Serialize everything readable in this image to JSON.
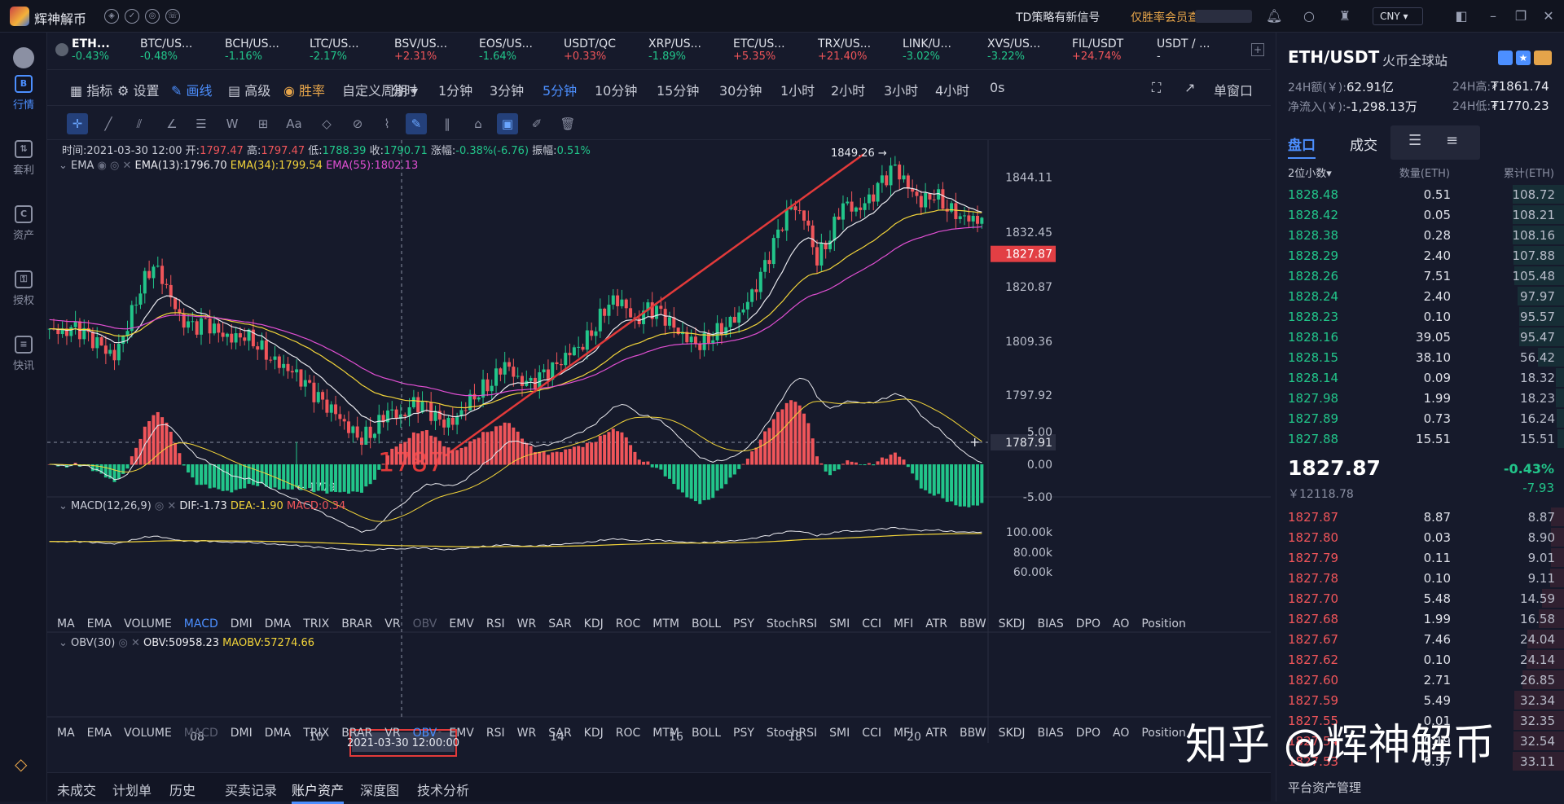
{
  "app": {
    "name": "辉神解币",
    "news": "TD策略有新信号",
    "news_link": "仅胜率会员查看",
    "currency": "CNY ▾"
  },
  "sidebar": [
    {
      "label": "行情",
      "glyph": "B"
    },
    {
      "label": "套利",
      "glyph": "⇅"
    },
    {
      "label": "资产",
      "glyph": "C"
    },
    {
      "label": "授权",
      "glyph": "⚿"
    },
    {
      "label": "快讯",
      "glyph": "≡"
    }
  ],
  "tickers": [
    {
      "name": "ETH...",
      "pct": "-0.43%"
    },
    {
      "name": "BTC/US...",
      "pct": "-0.48%"
    },
    {
      "name": "BCH/US...",
      "pct": "-1.16%"
    },
    {
      "name": "LTC/US...",
      "pct": "-2.17%"
    },
    {
      "name": "BSV/US...",
      "pct": "+2.31%"
    },
    {
      "name": "EOS/US...",
      "pct": "-1.64%"
    },
    {
      "name": "USDT/QC",
      "pct": "+0.33%"
    },
    {
      "name": "XRP/US...",
      "pct": "-1.89%"
    },
    {
      "name": "ETC/US...",
      "pct": "+5.35%"
    },
    {
      "name": "TRX/US...",
      "pct": "+21.40%"
    },
    {
      "name": "LINK/U...",
      "pct": "-3.02%"
    },
    {
      "name": "XVS/US...",
      "pct": "-3.22%"
    },
    {
      "name": "FIL/USDT",
      "pct": "+24.74%"
    },
    {
      "name": "USDT / ...",
      "pct": "-"
    }
  ],
  "toolbar": {
    "indicator": "指标",
    "settings": "设置",
    "draw": "画线",
    "advanced": "高级",
    "winrate": "胜率",
    "custom": "自定义周期 ▾",
    "periods": [
      "分时",
      "1分钟",
      "3分钟",
      "5分钟",
      "10分钟",
      "15分钟",
      "30分钟",
      "1小时",
      "2小时",
      "3小时",
      "4小时",
      "0s"
    ],
    "active_period": "5分钟",
    "single": "单窗口"
  },
  "ohlc": {
    "time": "时间:2021-03-30 12:00",
    "open_label": "开:",
    "open": "1797.47",
    "high_label": "高:",
    "high": "1797.47",
    "low_label": "低:",
    "low": "1788.39",
    "close_label": "收:",
    "close": "1790.71",
    "chg_label": "涨幅:",
    "chg": "-0.38%(-6.76)",
    "amp_label": "振幅:",
    "amp": "0.51%"
  },
  "ema": {
    "label": "EMA",
    "e13": "EMA(13):1796.70",
    "e34": "EMA(34):1799.54",
    "e55": "EMA(55):1802.13",
    "colors": {
      "e13": "#e9e9ee",
      "e34": "#f2d43a",
      "e55": "#e14fd3"
    }
  },
  "macd": {
    "label": "MACD(12,26,9)",
    "dif": "DIF:-1.73",
    "dea": "DEA:-1.90",
    "macd": "MACD:0.34"
  },
  "obv": {
    "label": "OBV(30)",
    "obv": "OBV:50958.23",
    "maobv": "MAOBV:57274.66"
  },
  "indicators": [
    "MA",
    "EMA",
    "VOLUME",
    "MACD",
    "DMI",
    "DMA",
    "TRIX",
    "BRAR",
    "VR",
    "OBV",
    "EMV",
    "RSI",
    "WR",
    "SAR",
    "KDJ",
    "ROC",
    "MTM",
    "BOLL",
    "PSY",
    "StochRSI",
    "SMI",
    "CCI",
    "MFI",
    "ATR",
    "BBW",
    "SKDJ",
    "BIAS",
    "DPO",
    "AO",
    "Position"
  ],
  "chart_data": {
    "type": "candlestick",
    "price_axis": [
      "1844.11",
      "1832.45",
      "1820.87",
      "1809.36",
      "1797.92"
    ],
    "price_range": [
      1776,
      1852
    ],
    "current_price_tag": "1827.87",
    "crosshair_price": "1787.91",
    "macd_axis": [
      "5.00",
      "0.00",
      "-5.00"
    ],
    "obv_axis": [
      "100.00k",
      "80.00k",
      "60.00k"
    ],
    "x_ticks": [
      "08",
      "10",
      "12",
      "14",
      "16",
      "18",
      "20"
    ],
    "crosshair_time": "2021-03-30 12:00:00",
    "annotations": {
      "high": "1849.26 →",
      "low": "← 1779",
      "mark": "1787"
    },
    "close_path": [
      1812,
      1811,
      1812,
      1810,
      1808,
      1806,
      1813,
      1821,
      1826,
      1821,
      1814,
      1812,
      1813,
      1811,
      1810,
      1811,
      1809,
      1806,
      1804,
      1802,
      1799,
      1796,
      1794,
      1791,
      1789,
      1791,
      1795,
      1793,
      1796,
      1795,
      1792,
      1792,
      1796,
      1799,
      1801,
      1805,
      1801,
      1800,
      1802,
      1804,
      1807,
      1809,
      1813,
      1818,
      1818,
      1813,
      1816,
      1815,
      1812,
      1810,
      1809,
      1811,
      1813,
      1815,
      1819,
      1825,
      1832,
      1838,
      1836,
      1827,
      1832,
      1839,
      1837,
      1839,
      1843,
      1846,
      1842,
      1839,
      1841,
      1838,
      1836,
      1835
    ]
  },
  "right": {
    "pair": "ETH/USDT",
    "exchange": "火币全球站",
    "vol_label": "24H额(￥):",
    "vol": "62.91亿",
    "high_label": "24H高:",
    "high": "₮1861.74",
    "inflow_label": "净流入(￥):",
    "inflow": "-1,298.13万",
    "low_label": "24H低:",
    "low": "₮1770.23",
    "tab_book": "盘口",
    "tab_trade": "成交",
    "decimals": "2位小数▾",
    "col_qty": "数量(ETH)",
    "col_cum": "累计(ETH)",
    "bids": [
      [
        "1828.48",
        "0.51",
        "108.72"
      ],
      [
        "1828.42",
        "0.05",
        "108.21"
      ],
      [
        "1828.38",
        "0.28",
        "108.16"
      ],
      [
        "1828.29",
        "2.40",
        "107.88"
      ],
      [
        "1828.26",
        "7.51",
        "105.48"
      ],
      [
        "1828.24",
        "2.40",
        "97.97"
      ],
      [
        "1828.23",
        "0.10",
        "95.57"
      ],
      [
        "1828.16",
        "39.05",
        "95.47"
      ],
      [
        "1828.15",
        "38.10",
        "56.42"
      ],
      [
        "1828.14",
        "0.09",
        "18.32"
      ],
      [
        "1827.98",
        "1.99",
        "18.23"
      ],
      [
        "1827.89",
        "0.73",
        "16.24"
      ],
      [
        "1827.88",
        "15.51",
        "15.51"
      ]
    ],
    "last": "1827.87",
    "last_cny": "￥12118.78",
    "last_pct": "-0.43%",
    "last_chg": "-7.93",
    "asks": [
      [
        "1827.87",
        "8.87",
        "8.87"
      ],
      [
        "1827.80",
        "0.03",
        "8.90"
      ],
      [
        "1827.79",
        "0.11",
        "9.01"
      ],
      [
        "1827.78",
        "0.10",
        "9.11"
      ],
      [
        "1827.70",
        "5.48",
        "14.59"
      ],
      [
        "1827.68",
        "1.99",
        "16.58"
      ],
      [
        "1827.67",
        "7.46",
        "24.04"
      ],
      [
        "1827.62",
        "0.10",
        "24.14"
      ],
      [
        "1827.60",
        "2.71",
        "26.85"
      ],
      [
        "1827.59",
        "5.49",
        "32.34"
      ],
      [
        "1827.55",
        "0.01",
        "32.35"
      ],
      [
        "1827.54",
        "0.19",
        "32.54"
      ],
      [
        "1827.53",
        "0.57",
        "33.11"
      ]
    ],
    "footer": "平台资产管理"
  },
  "bottom_tabs": [
    "未成交",
    "计划单",
    "历史",
    "买卖记录",
    "账户资产",
    "深度图",
    "技术分析"
  ],
  "active_bottom": "账户资产",
  "watermark": "知乎 @辉神解币"
}
